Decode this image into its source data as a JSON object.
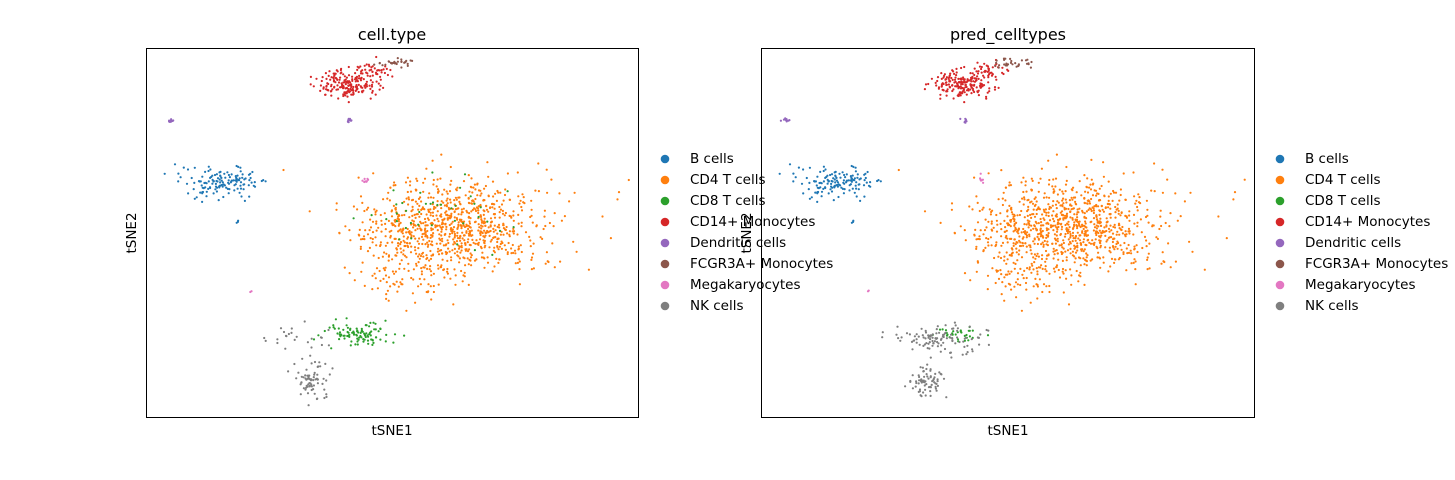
{
  "chart_data": [
    {
      "type": "scatter",
      "title": "cell.type",
      "xlabel": "tSNE1",
      "ylabel": "tSNE2",
      "xlim": [
        -40,
        40
      ],
      "ylim": [
        -40,
        40
      ],
      "grid": false,
      "legend_position": "right",
      "legend_labels": [
        "B cells",
        "CD4 T cells",
        "CD8 T cells",
        "CD14+ Monocytes",
        "Dendritic cells",
        "FCGR3A+ Monocytes",
        "Megakaryocytes",
        "NK cells"
      ],
      "series": [
        {
          "name": "B cells",
          "color": "#1f77b4",
          "clusters": [
            {
              "cx": -27.5,
              "cy": 11,
              "sx": 3.2,
              "sy": 1.4,
              "n": 140
            },
            {
              "cx": -25,
              "cy": 2.5,
              "sx": 0.3,
              "sy": 0.3,
              "n": 3
            },
            {
              "cx": -35,
              "cy": 13,
              "sx": 0.2,
              "sy": 0.2,
              "n": 1
            }
          ]
        },
        {
          "name": "CD4 T cells",
          "color": "#ff7f0e",
          "clusters": [
            {
              "cx": 10,
              "cy": 1.5,
              "sx": 7.5,
              "sy": 5.2,
              "n": 900
            },
            {
              "cx": 2,
              "cy": -8,
              "sx": 3.5,
              "sy": 3.5,
              "n": 100
            },
            {
              "cx": 38.5,
              "cy": 11.5,
              "sx": 0.3,
              "sy": 0.3,
              "n": 1
            }
          ]
        },
        {
          "name": "CD8 T cells",
          "color": "#2ca02c",
          "clusters": [
            {
              "cx": -5.5,
              "cy": -22,
              "sx": 2.8,
              "sy": 1.3,
              "n": 100
            },
            {
              "cx": 8,
              "cy": 3.5,
              "sx": 6,
              "sy": 4,
              "n": 40
            }
          ]
        },
        {
          "name": "CD14+ Monocytes",
          "color": "#d62728",
          "clusters": [
            {
              "cx": -7,
              "cy": 32.5,
              "sx": 2.5,
              "sy": 1.4,
              "n": 200
            },
            {
              "cx": -3,
              "cy": 35.5,
              "sx": 1.5,
              "sy": 0.8,
              "n": 30
            }
          ]
        },
        {
          "name": "Dendritic cells",
          "color": "#9467bd",
          "clusters": [
            {
              "cx": -36,
              "cy": 24.5,
              "sx": 0.4,
              "sy": 0.2,
              "n": 10
            },
            {
              "cx": -7,
              "cy": 24.5,
              "sx": 0.3,
              "sy": 0.3,
              "n": 8
            }
          ]
        },
        {
          "name": "FCGR3A+ Monocytes",
          "color": "#8c564b",
          "clusters": [
            {
              "cx": 1,
              "cy": 37,
              "sx": 1.6,
              "sy": 0.6,
              "n": 30
            }
          ]
        },
        {
          "name": "Megakaryocytes",
          "color": "#e377c2",
          "clusters": [
            {
              "cx": -4.5,
              "cy": 11.5,
              "sx": 0.3,
              "sy": 0.4,
              "n": 8
            },
            {
              "cx": -23,
              "cy": -12.5,
              "sx": 0.2,
              "sy": 0.2,
              "n": 2
            }
          ]
        },
        {
          "name": "NK cells",
          "color": "#7f7f7f",
          "clusters": [
            {
              "cx": -13,
              "cy": -32,
              "sx": 1.5,
              "sy": 2.0,
              "n": 70
            },
            {
              "cx": -16,
              "cy": -23,
              "sx": 2.5,
              "sy": 1.6,
              "n": 25
            }
          ]
        }
      ]
    },
    {
      "type": "scatter",
      "title": "pred_celltypes",
      "xlabel": "tSNE1",
      "ylabel": "tSNE2",
      "xlim": [
        -40,
        40
      ],
      "ylim": [
        -40,
        40
      ],
      "grid": false,
      "legend_position": "right",
      "legend_labels": [
        "B cells",
        "CD4 T cells",
        "CD8 T cells",
        "CD14+ Monocytes",
        "Dendritic cells",
        "FCGR3A+ Monocytes",
        "Megakaryocytes",
        "NK cells"
      ],
      "series": [
        {
          "name": "B cells",
          "color": "#1f77b4",
          "clusters": [
            {
              "cx": -27.5,
              "cy": 11,
              "sx": 3.2,
              "sy": 1.4,
              "n": 140
            },
            {
              "cx": -25,
              "cy": 2.5,
              "sx": 0.3,
              "sy": 0.3,
              "n": 3
            },
            {
              "cx": -35,
              "cy": 13,
              "sx": 0.2,
              "sy": 0.2,
              "n": 1
            }
          ]
        },
        {
          "name": "CD4 T cells",
          "color": "#ff7f0e",
          "clusters": [
            {
              "cx": 10,
              "cy": 1.5,
              "sx": 7.5,
              "sy": 5.2,
              "n": 940
            },
            {
              "cx": 2,
              "cy": -8,
              "sx": 3.5,
              "sy": 3.5,
              "n": 100
            },
            {
              "cx": 38.5,
              "cy": 11.5,
              "sx": 0.3,
              "sy": 0.3,
              "n": 1
            }
          ]
        },
        {
          "name": "CD8 T cells",
          "color": "#2ca02c",
          "clusters": [
            {
              "cx": -8,
              "cy": -22,
              "sx": 1.8,
              "sy": 0.9,
              "n": 30
            }
          ]
        },
        {
          "name": "CD14+ Monocytes",
          "color": "#d62728",
          "clusters": [
            {
              "cx": -7,
              "cy": 32.5,
              "sx": 2.5,
              "sy": 1.4,
              "n": 200
            },
            {
              "cx": -3,
              "cy": 35.5,
              "sx": 1.5,
              "sy": 0.8,
              "n": 30
            }
          ]
        },
        {
          "name": "Dendritic cells",
          "color": "#9467bd",
          "clusters": [
            {
              "cx": -36,
              "cy": 24.5,
              "sx": 0.4,
              "sy": 0.2,
              "n": 10
            },
            {
              "cx": -7,
              "cy": 24.5,
              "sx": 0.3,
              "sy": 0.3,
              "n": 8
            }
          ]
        },
        {
          "name": "FCGR3A+ Monocytes",
          "color": "#8c564b",
          "clusters": [
            {
              "cx": 1,
              "cy": 37,
              "sx": 1.6,
              "sy": 0.6,
              "n": 30
            }
          ]
        },
        {
          "name": "Megakaryocytes",
          "color": "#e377c2",
          "clusters": [
            {
              "cx": -4.5,
              "cy": 11.5,
              "sx": 0.3,
              "sy": 0.4,
              "n": 8
            },
            {
              "cx": -23,
              "cy": -12.5,
              "sx": 0.2,
              "sy": 0.2,
              "n": 2
            }
          ]
        },
        {
          "name": "NK cells",
          "color": "#7f7f7f",
          "clusters": [
            {
              "cx": -13,
              "cy": -32,
              "sx": 1.5,
              "sy": 2.0,
              "n": 70
            },
            {
              "cx": -11,
              "cy": -23,
              "sx": 3.5,
              "sy": 1.5,
              "n": 110
            }
          ]
        }
      ]
    }
  ]
}
